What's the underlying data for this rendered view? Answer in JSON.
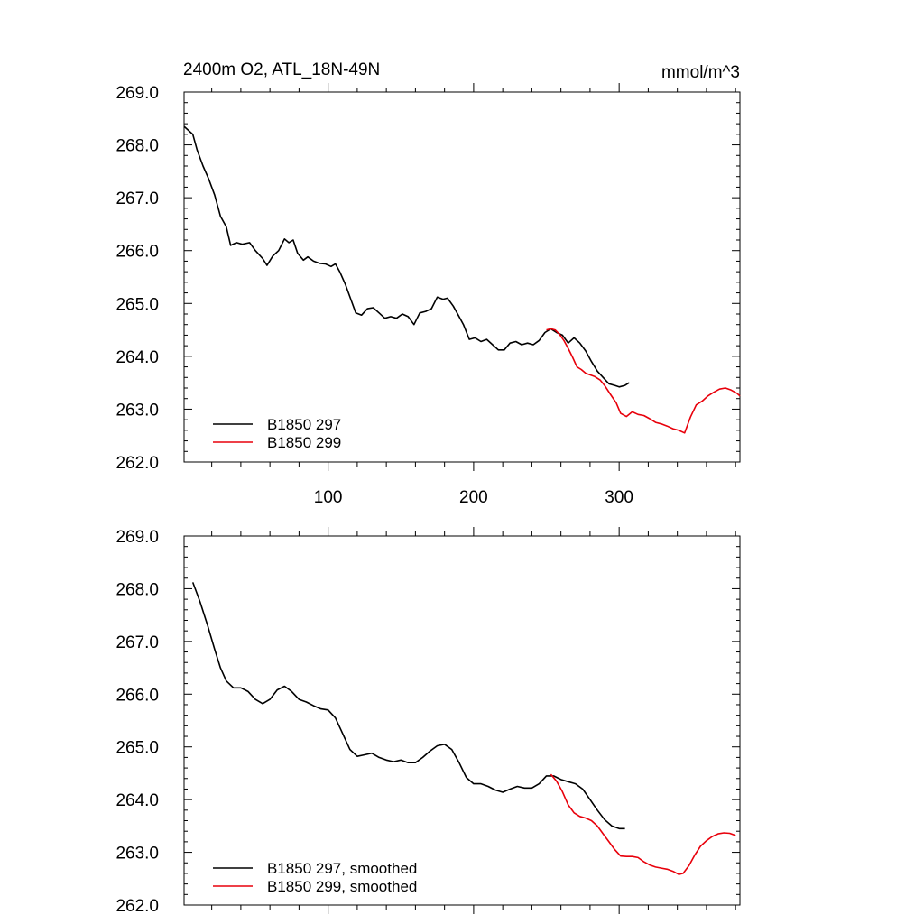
{
  "title_left": "2400m O2, ATL_18N-49N",
  "title_right": "mmol/m^3",
  "colors": {
    "series_297": "#000000",
    "series_299": "#e8000b"
  },
  "chart_data": [
    {
      "type": "line",
      "title": "2400m O2, ATL_18N-49N",
      "units": "mmol/m^3",
      "xlim": [
        1,
        383
      ],
      "ylim": [
        262.0,
        269.0
      ],
      "x_ticks": [
        "100",
        "200",
        "300"
      ],
      "y_ticks": [
        "262.0",
        "263.0",
        "264.0",
        "265.0",
        "266.0",
        "267.0",
        "268.0",
        "269.0"
      ],
      "grid": false,
      "legend_position": "bottom-left",
      "series": [
        {
          "name": "B1850 297",
          "color": "#000000",
          "points": [
            [
              1,
              268.35
            ],
            [
              3,
              268.3
            ],
            [
              7,
              268.2
            ],
            [
              10,
              267.9
            ],
            [
              14,
              267.6
            ],
            [
              18,
              267.35
            ],
            [
              22,
              267.05
            ],
            [
              26,
              266.65
            ],
            [
              30,
              266.45
            ],
            [
              33,
              266.1
            ],
            [
              37,
              266.15
            ],
            [
              41,
              266.12
            ],
            [
              46,
              266.15
            ],
            [
              50,
              266.0
            ],
            [
              55,
              265.85
            ],
            [
              58,
              265.72
            ],
            [
              62,
              265.9
            ],
            [
              66,
              266.0
            ],
            [
              70,
              266.22
            ],
            [
              73,
              266.15
            ],
            [
              76,
              266.2
            ],
            [
              79,
              265.95
            ],
            [
              83,
              265.82
            ],
            [
              86,
              265.88
            ],
            [
              90,
              265.8
            ],
            [
              94,
              265.76
            ],
            [
              98,
              265.75
            ],
            [
              102,
              265.7
            ],
            [
              105,
              265.75
            ],
            [
              108,
              265.6
            ],
            [
              112,
              265.35
            ],
            [
              116,
              265.05
            ],
            [
              119,
              264.82
            ],
            [
              123,
              264.78
            ],
            [
              127,
              264.9
            ],
            [
              131,
              264.92
            ],
            [
              135,
              264.82
            ],
            [
              139,
              264.72
            ],
            [
              143,
              264.75
            ],
            [
              147,
              264.72
            ],
            [
              151,
              264.8
            ],
            [
              155,
              264.75
            ],
            [
              159,
              264.6
            ],
            [
              163,
              264.82
            ],
            [
              167,
              264.85
            ],
            [
              171,
              264.9
            ],
            [
              175,
              265.12
            ],
            [
              179,
              265.08
            ],
            [
              182,
              265.1
            ],
            [
              186,
              264.95
            ],
            [
              189,
              264.8
            ],
            [
              193,
              264.6
            ],
            [
              197,
              264.32
            ],
            [
              201,
              264.35
            ],
            [
              205,
              264.28
            ],
            [
              209,
              264.32
            ],
            [
              213,
              264.22
            ],
            [
              217,
              264.12
            ],
            [
              221,
              264.12
            ],
            [
              225,
              264.25
            ],
            [
              229,
              264.28
            ],
            [
              233,
              264.22
            ],
            [
              237,
              264.25
            ],
            [
              241,
              264.22
            ],
            [
              245,
              264.3
            ],
            [
              249,
              264.45
            ],
            [
              253,
              264.52
            ],
            [
              257,
              264.45
            ],
            [
              261,
              264.4
            ],
            [
              265,
              264.25
            ],
            [
              269,
              264.35
            ],
            [
              273,
              264.25
            ],
            [
              277,
              264.1
            ],
            [
              281,
              263.9
            ],
            [
              285,
              263.72
            ],
            [
              289,
              263.6
            ],
            [
              293,
              263.48
            ],
            [
              297,
              263.45
            ],
            [
              300,
              263.42
            ],
            [
              304,
              263.45
            ],
            [
              307,
              263.5
            ]
          ]
        },
        {
          "name": "B1850 299",
          "color": "#e8000b",
          "points": [
            [
              250,
              264.5
            ],
            [
              253,
              264.52
            ],
            [
              256,
              264.5
            ],
            [
              259,
              264.42
            ],
            [
              262,
              264.3
            ],
            [
              265,
              264.15
            ],
            [
              268,
              263.98
            ],
            [
              271,
              263.8
            ],
            [
              274,
              263.75
            ],
            [
              277,
              263.68
            ],
            [
              280,
              263.65
            ],
            [
              283,
              263.62
            ],
            [
              287,
              263.55
            ],
            [
              290,
              263.45
            ],
            [
              294,
              263.28
            ],
            [
              298,
              263.12
            ],
            [
              301,
              262.92
            ],
            [
              305,
              262.86
            ],
            [
              309,
              262.95
            ],
            [
              313,
              262.9
            ],
            [
              317,
              262.88
            ],
            [
              321,
              262.82
            ],
            [
              325,
              262.75
            ],
            [
              329,
              262.72
            ],
            [
              333,
              262.68
            ],
            [
              337,
              262.63
            ],
            [
              341,
              262.6
            ],
            [
              345,
              262.55
            ],
            [
              349,
              262.85
            ],
            [
              353,
              263.08
            ],
            [
              357,
              263.15
            ],
            [
              361,
              263.25
            ],
            [
              365,
              263.32
            ],
            [
              369,
              263.38
            ],
            [
              373,
              263.4
            ],
            [
              377,
              263.36
            ],
            [
              381,
              263.3
            ],
            [
              383,
              263.25
            ]
          ]
        }
      ]
    },
    {
      "type": "line",
      "xlim": [
        1,
        383
      ],
      "ylim": [
        262.0,
        269.0
      ],
      "y_ticks": [
        "262.0",
        "263.0",
        "264.0",
        "265.0",
        "266.0",
        "267.0",
        "268.0",
        "269.0"
      ],
      "grid": false,
      "legend_position": "bottom-left",
      "series": [
        {
          "name": "B1850 297, smoothed",
          "color": "#000000",
          "points": [
            [
              7,
              268.12
            ],
            [
              12,
              267.75
            ],
            [
              17,
              267.32
            ],
            [
              22,
              266.85
            ],
            [
              26,
              266.5
            ],
            [
              30,
              266.25
            ],
            [
              35,
              266.12
            ],
            [
              40,
              266.12
            ],
            [
              45,
              266.05
            ],
            [
              50,
              265.9
            ],
            [
              55,
              265.82
            ],
            [
              60,
              265.9
            ],
            [
              65,
              266.08
            ],
            [
              70,
              266.15
            ],
            [
              75,
              266.05
            ],
            [
              80,
              265.9
            ],
            [
              85,
              265.85
            ],
            [
              90,
              265.78
            ],
            [
              95,
              265.72
            ],
            [
              100,
              265.7
            ],
            [
              105,
              265.55
            ],
            [
              110,
              265.25
            ],
            [
              115,
              264.95
            ],
            [
              120,
              264.82
            ],
            [
              125,
              264.85
            ],
            [
              130,
              264.88
            ],
            [
              135,
              264.8
            ],
            [
              140,
              264.75
            ],
            [
              145,
              264.72
            ],
            [
              150,
              264.75
            ],
            [
              155,
              264.7
            ],
            [
              160,
              264.7
            ],
            [
              165,
              264.8
            ],
            [
              170,
              264.92
            ],
            [
              175,
              265.02
            ],
            [
              180,
              265.05
            ],
            [
              185,
              264.95
            ],
            [
              190,
              264.7
            ],
            [
              195,
              264.42
            ],
            [
              200,
              264.3
            ],
            [
              205,
              264.3
            ],
            [
              210,
              264.25
            ],
            [
              215,
              264.18
            ],
            [
              220,
              264.14
            ],
            [
              225,
              264.2
            ],
            [
              230,
              264.25
            ],
            [
              235,
              264.22
            ],
            [
              240,
              264.22
            ],
            [
              245,
              264.3
            ],
            [
              250,
              264.45
            ],
            [
              255,
              264.45
            ],
            [
              260,
              264.38
            ],
            [
              265,
              264.34
            ],
            [
              270,
              264.3
            ],
            [
              275,
              264.2
            ],
            [
              280,
              264.0
            ],
            [
              285,
              263.8
            ],
            [
              290,
              263.62
            ],
            [
              295,
              263.5
            ],
            [
              300,
              263.45
            ],
            [
              304,
              263.45
            ]
          ]
        },
        {
          "name": "B1850 299, smoothed",
          "color": "#e8000b",
          "points": [
            [
              253,
              264.48
            ],
            [
              257,
              264.35
            ],
            [
              261,
              264.15
            ],
            [
              265,
              263.9
            ],
            [
              269,
              263.75
            ],
            [
              273,
              263.68
            ],
            [
              277,
              263.65
            ],
            [
              281,
              263.6
            ],
            [
              285,
              263.5
            ],
            [
              289,
              263.35
            ],
            [
              293,
              263.2
            ],
            [
              297,
              263.05
            ],
            [
              301,
              262.93
            ],
            [
              305,
              262.92
            ],
            [
              309,
              262.92
            ],
            [
              313,
              262.9
            ],
            [
              317,
              262.82
            ],
            [
              321,
              262.76
            ],
            [
              325,
              262.72
            ],
            [
              329,
              262.7
            ],
            [
              333,
              262.68
            ],
            [
              337,
              262.64
            ],
            [
              341,
              262.58
            ],
            [
              344,
              262.6
            ],
            [
              348,
              262.75
            ],
            [
              352,
              262.95
            ],
            [
              356,
              263.12
            ],
            [
              360,
              263.22
            ],
            [
              364,
              263.3
            ],
            [
              368,
              263.35
            ],
            [
              372,
              263.37
            ],
            [
              376,
              263.36
            ],
            [
              380,
              263.32
            ]
          ]
        }
      ]
    }
  ]
}
